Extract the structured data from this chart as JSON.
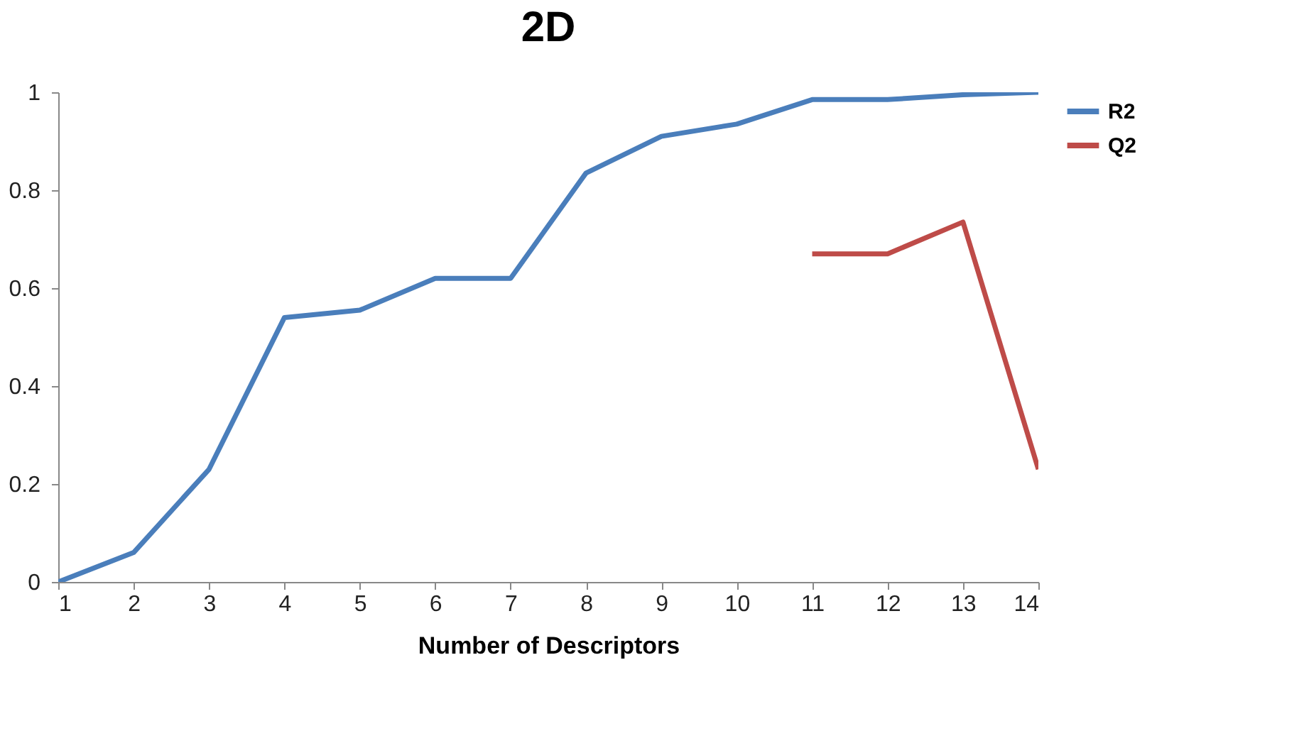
{
  "chart_data": {
    "type": "line",
    "title": "2D",
    "xlabel": "Number of Descriptors",
    "x": [
      1,
      2,
      3,
      4,
      5,
      6,
      7,
      8,
      9,
      10,
      11,
      12,
      13,
      14
    ],
    "series": [
      {
        "name": "R2",
        "color": "#4a7ebb",
        "values": [
          0,
          0.06,
          0.23,
          0.54,
          0.555,
          0.62,
          0.62,
          0.835,
          0.91,
          0.935,
          0.985,
          0.985,
          0.995,
          1.0
        ]
      },
      {
        "name": "Q2",
        "color": "#be4b48",
        "values": [
          null,
          null,
          null,
          null,
          null,
          null,
          null,
          null,
          null,
          null,
          0.67,
          0.67,
          0.735,
          0.23
        ]
      }
    ],
    "xlim": [
      1,
      14
    ],
    "xticks": [
      1,
      2,
      3,
      4,
      5,
      6,
      7,
      8,
      9,
      10,
      11,
      12,
      13,
      14
    ],
    "ylim": [
      0,
      1
    ],
    "yticks": [
      0,
      0.2,
      0.4,
      0.6,
      0.8,
      1
    ],
    "grid": false,
    "legend": "right",
    "marker": "none",
    "line_style": "solid"
  }
}
